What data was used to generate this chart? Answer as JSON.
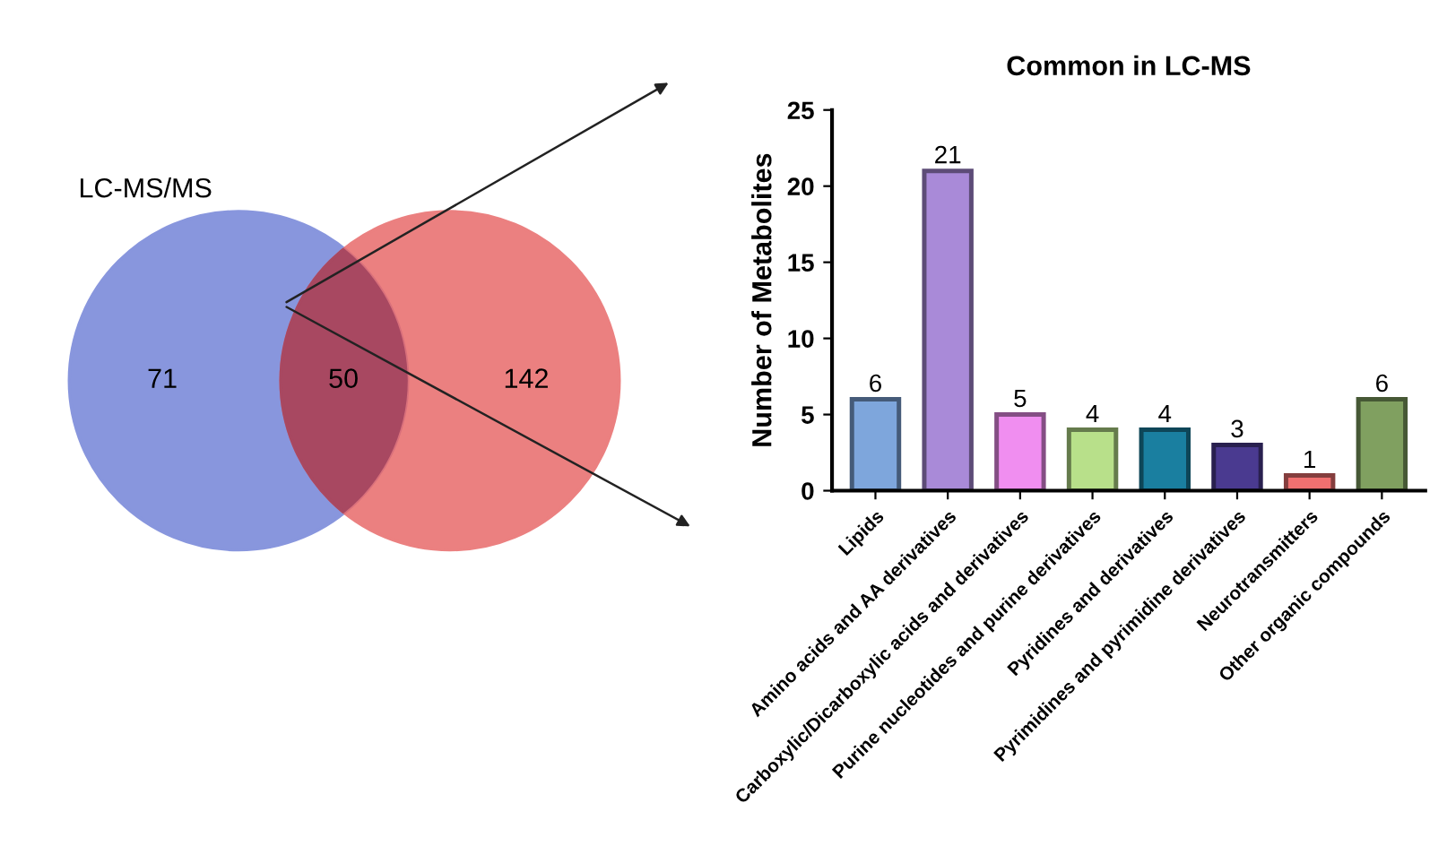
{
  "chart_data": [
    {
      "type": "other",
      "categories": [
        null,
        null,
        null
      ],
      "values": [
        71,
        50,
        142
      ],
      "colors": [
        "#7484d8",
        "#a2445f",
        "#e86a6a"
      ],
      "data_labels": true,
      "annotations": [
        "LC-MS/MS"
      ]
    },
    {
      "type": "bar",
      "title": "Common in LC-MS",
      "ylabel": "Number of Metabolites",
      "categories": [
        "Lipids",
        "Amino acids and AA derivatives",
        "Carboxylic/Dicarboxylic acids and derivatives",
        "Purine nucleotides and purine derivatives",
        "Pyridines and derivatives",
        "Pyrimidines and pyrimidine derivatives",
        "Neurotransmitters",
        "Other organic compounds"
      ],
      "values": [
        6,
        21,
        5,
        4,
        4,
        3,
        1,
        6
      ],
      "colors": [
        "#7ea6dc",
        "#a98ad8",
        "#f08ef0",
        "#b8e08a",
        "#1a7fa0",
        "#4a3a90",
        "#f07070",
        "#80a060"
      ],
      "ylim": [
        0,
        25
      ],
      "yticks": [
        0,
        5,
        10,
        15,
        20,
        25
      ],
      "data_labels": true,
      "grid": false,
      "legend": false
    }
  ]
}
